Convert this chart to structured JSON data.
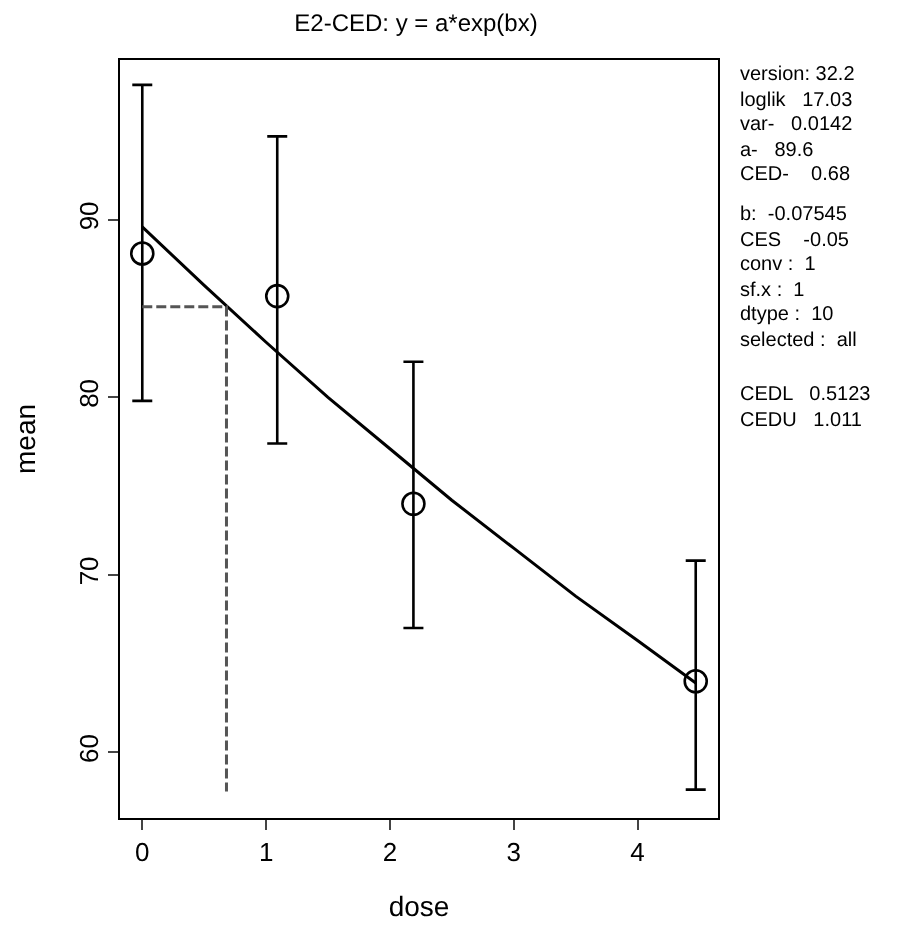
{
  "chart_data": {
    "type": "scatter",
    "title": "E2-CED: y = a*exp(bx)",
    "xlabel": "dose",
    "ylabel": "mean",
    "xlim": [
      -0.18,
      4.65
    ],
    "ylim": [
      56.3,
      99.0
    ],
    "xticks": [
      0,
      1,
      2,
      3,
      4
    ],
    "yticks": [
      60,
      70,
      80,
      90
    ],
    "series": [
      {
        "color": "#000000",
        "marker": "circle",
        "x": [
          0,
          1.09,
          2.19,
          4.47
        ],
        "values": [
          88.1,
          85.7,
          74.0,
          64.0
        ],
        "errors": [
          [
            79.8,
            97.6
          ],
          [
            77.4,
            94.7
          ],
          [
            67.0,
            82.0
          ],
          [
            57.9,
            70.8
          ]
        ]
      },
      {
        "type": "line",
        "color": "#000000",
        "line_style": "solid",
        "x": [
          0,
          0.5,
          1,
          1.5,
          2,
          2.5,
          3,
          3.5,
          4,
          4.47
        ],
        "values": [
          89.6,
          86.3,
          83.1,
          80.0,
          77.1,
          74.2,
          71.5,
          68.8,
          66.3,
          63.9
        ]
      },
      {
        "type": "line",
        "color": "#555555",
        "line_style": "dashed",
        "x": [
          0,
          0.68,
          0.68
        ],
        "values": [
          85.1,
          85.1,
          57.8
        ]
      }
    ],
    "annotations": [
      "version: 32.2",
      "loglik   17.03",
      "var-   0.0142",
      "a-   89.6",
      "CED-    0.68",
      "b:  -0.07545",
      "CES    -0.05",
      "conv :  1",
      "sf.x :  1",
      "dtype :  10",
      "selected :  all",
      "CEDL   0.5123",
      "CEDU   1.011"
    ]
  }
}
